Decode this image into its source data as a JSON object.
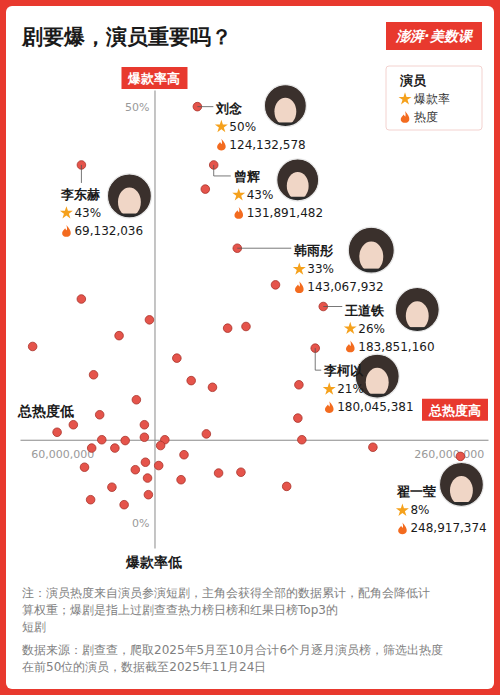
{
  "chart_data": {
    "type": "scatter",
    "title": "剧要爆，演员重要吗？",
    "logo": "澎湃·美数课",
    "x": [
      124132578,
      131891482,
      143067932,
      183851160,
      180045381,
      69132036,
      248917374,
      127900000,
      161200000,
      69100000,
      101400000,
      138500000,
      147200000,
      87000000,
      46000000,
      114400000,
      74900000,
      121200000,
      131300000,
      172300000,
      95200000,
      77800000,
      171800000,
      99000000,
      65300000,
      57600000,
      78800000,
      89900000,
      99000000,
      108700000,
      128400000,
      173700000,
      207400000,
      74000000,
      85000000,
      106700000,
      117800000,
      99500000,
      105800000,
      70600000,
      94700000,
      134200000,
      144800000,
      116400000,
      100500000,
      166500000,
      83600000,
      100900000,
      73500000,
      89400000
    ],
    "values": [
      50,
      43,
      33,
      26,
      21,
      43,
      8,
      40.1,
      28.6,
      26.9,
      24.4,
      23.4,
      23.6,
      22.5,
      21.2,
      19.8,
      17.8,
      17.1,
      16.3,
      16.6,
      14.8,
      13.0,
      12.6,
      11.8,
      11.8,
      10.9,
      10.0,
      9.9,
      10.3,
      10.0,
      10.7,
      10.0,
      9.1,
      9.0,
      9.0,
      9.3,
      8.2,
      7.3,
      6.9,
      6.7,
      6.4,
      6.0,
      6.1,
      5.2,
      5.4,
      4.4,
      4.3,
      3.4,
      2.8,
      2.2
    ],
    "point_labels": [
      "刘念",
      "曾辉",
      "韩雨彤",
      "王道铁",
      "李柯以",
      "李东赫",
      "翟一莹",
      null,
      null,
      null,
      null,
      null,
      null,
      null,
      null,
      null,
      null,
      null,
      null,
      null,
      null,
      null,
      null,
      null,
      null,
      null,
      null,
      null,
      null,
      null,
      null,
      null,
      null,
      null,
      null,
      null,
      null,
      null,
      null,
      null,
      null,
      null,
      null,
      null,
      null,
      null,
      null,
      null,
      null,
      null
    ],
    "value_labels": [
      "50%",
      "43%",
      "33%",
      "26%",
      "21%",
      "43%",
      "8%",
      null,
      null,
      null,
      null,
      null,
      null,
      null,
      null,
      null,
      null,
      null,
      null,
      null,
      null,
      null,
      null,
      null,
      null,
      null,
      null,
      null,
      null,
      null,
      null,
      null,
      null,
      null,
      null,
      null,
      null,
      null,
      null,
      null,
      null,
      null,
      null,
      null,
      null,
      null,
      null,
      null,
      null,
      null
    ],
    "x_labels": [
      "124,132,578",
      "131,891,482",
      "143,067,932",
      "183,851,160",
      "180,045,381",
      "69,132,036",
      "248,917,374",
      null,
      null,
      null,
      null,
      null,
      null,
      null,
      null,
      null,
      null,
      null,
      null,
      null,
      null,
      null,
      null,
      null,
      null,
      null,
      null,
      null,
      null,
      null,
      null,
      null,
      null,
      null,
      null,
      null,
      null,
      null,
      null,
      null,
      null,
      null,
      null,
      null,
      null,
      null,
      null,
      null,
      null,
      null
    ],
    "color": "#e5544b",
    "marker": "circle",
    "xlim": [
      40000000,
      262000000
    ],
    "xticks": [
      {
        "value": 60000000,
        "label": "60,000,000"
      },
      {
        "value": 260000000,
        "label": "260,000,000"
      }
    ],
    "ylim": [
      -3,
      52
    ],
    "yticks": [
      {
        "value": 50,
        "label": "50%"
      },
      {
        "value": 0,
        "label": "0%"
      }
    ],
    "x_axis_crosses_y": 10,
    "y_axis_crosses_x": 103800000,
    "quadrant_labels": {
      "top": "爆款率高",
      "bottom": "爆款率低",
      "left": "总热度低",
      "right": "总热度高"
    },
    "legend": "top-right",
    "legend_title": "演员",
    "legend_entries": [
      "爆款率",
      "热度"
    ],
    "grid": false,
    "notes": [
      [
        "注：演员热度来自演员参演短剧，主角会获得全部的数据累计，配角会降低计",
        "算权重；爆剧是指上过剧查查热力榜日榜和红果日榜Top3的",
        "短剧"
      ],
      [
        "数据来源：剧查查，爬取2025年5月至10月合计6个月逐月演员榜，筛选出热度",
        "在前50位的演员，数据截至2025年11月24日"
      ]
    ]
  }
}
